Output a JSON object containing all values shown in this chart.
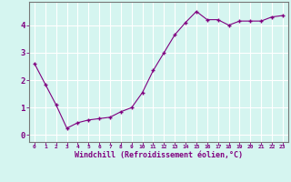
{
  "x": [
    0,
    1,
    2,
    3,
    4,
    5,
    6,
    7,
    8,
    9,
    10,
    11,
    12,
    13,
    14,
    15,
    16,
    17,
    18,
    19,
    20,
    21,
    22,
    23
  ],
  "y": [
    2.6,
    1.85,
    1.1,
    0.25,
    0.45,
    0.55,
    0.6,
    0.65,
    0.85,
    1.0,
    1.55,
    2.35,
    3.0,
    3.65,
    4.1,
    4.5,
    4.2,
    4.2,
    4.0,
    4.15,
    4.15,
    4.15,
    4.3,
    4.35
  ],
  "line_color": "#800080",
  "marker": "+",
  "marker_size": 3,
  "bg_color": "#d5f5f0",
  "grid_color": "#ffffff",
  "xlabel": "Windchill (Refroidissement éolien,°C)",
  "xlabel_color": "#800080",
  "tick_color": "#800080",
  "ylabel_ticks": [
    0,
    1,
    2,
    3,
    4
  ],
  "xlim": [
    -0.5,
    23.5
  ],
  "ylim": [
    -0.25,
    4.85
  ],
  "xtick_labels": [
    "0",
    "1",
    "2",
    "3",
    "4",
    "5",
    "6",
    "7",
    "8",
    "9",
    "10",
    "11",
    "12",
    "13",
    "14",
    "15",
    "16",
    "17",
    "18",
    "19",
    "20",
    "21",
    "22",
    "23"
  ]
}
